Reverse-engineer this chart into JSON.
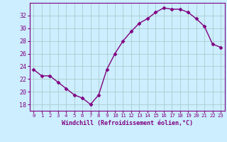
{
  "x": [
    0,
    1,
    2,
    3,
    4,
    5,
    6,
    7,
    8,
    9,
    10,
    11,
    12,
    13,
    14,
    15,
    16,
    17,
    18,
    19,
    20,
    21,
    22,
    23
  ],
  "y": [
    23.5,
    22.5,
    22.5,
    21.5,
    20.5,
    19.5,
    19.0,
    18.0,
    19.5,
    23.5,
    26.0,
    28.0,
    29.5,
    30.8,
    31.5,
    32.5,
    33.2,
    33.0,
    33.0,
    32.5,
    31.5,
    30.3,
    27.5,
    27.0
  ],
  "line_color": "#800080",
  "marker": "D",
  "marker_size": 2.5,
  "bg_color": "#cceeff",
  "grid_color": "#aacccc",
  "yticks": [
    18,
    20,
    22,
    24,
    26,
    28,
    30,
    32
  ],
  "xticks": [
    0,
    1,
    2,
    3,
    4,
    5,
    6,
    7,
    8,
    9,
    10,
    11,
    12,
    13,
    14,
    15,
    16,
    17,
    18,
    19,
    20,
    21,
    22,
    23
  ],
  "xlabel": "Windchill (Refroidissement éolien,°C)",
  "ylim": [
    17.0,
    34.0
  ],
  "xlim": [
    -0.5,
    23.5
  ],
  "tick_color": "#800080",
  "label_color": "#800080",
  "xlabel_fontsize": 6.0,
  "xtick_fontsize": 5.2,
  "ytick_fontsize": 6.0
}
